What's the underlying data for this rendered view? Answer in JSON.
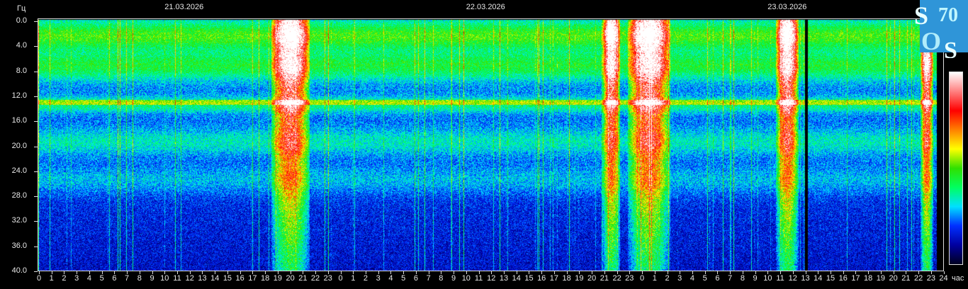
{
  "chart_data": {
    "type": "heatmap",
    "title": "",
    "ylabel": "Гц",
    "xlabel": "час",
    "ylim": [
      0,
      40
    ],
    "xlim_hours": [
      0,
      72
    ],
    "yticks": [
      "0.0",
      "4.0",
      "8.0",
      "12.0",
      "16.0",
      "20.0",
      "24.0",
      "28.0",
      "32.0",
      "36.0",
      "40.0"
    ],
    "xticks": [
      "0",
      "1",
      "2",
      "3",
      "4",
      "5",
      "6",
      "7",
      "8",
      "9",
      "10",
      "11",
      "12",
      "13",
      "14",
      "15",
      "16",
      "17",
      "18",
      "19",
      "20",
      "21",
      "22",
      "23",
      "0",
      "1",
      "2",
      "3",
      "4",
      "5",
      "6",
      "7",
      "8",
      "9",
      "10",
      "11",
      "12",
      "13",
      "14",
      "15",
      "16",
      "17",
      "18",
      "19",
      "20",
      "21",
      "22",
      "23",
      "0",
      "1",
      "2",
      "3",
      "4",
      "5",
      "6",
      "7",
      "8",
      "9",
      "10",
      "11",
      "12",
      "13",
      "14",
      "15",
      "16",
      "17",
      "18",
      "19",
      "20",
      "21",
      "22",
      "23",
      "24"
    ],
    "dates": [
      "21.03.2026",
      "22.03.2026",
      "23.03.2026"
    ],
    "data_end_hour": 71.2,
    "resonance_bands_hz": [
      3.0,
      7.8,
      14.0,
      20.0,
      26.0
    ],
    "high_intensity_periods_hours": [
      [
        18.5,
        21.6
      ],
      [
        44.9,
        46.3
      ],
      [
        46.9,
        50.3
      ],
      [
        58.7,
        60.5
      ],
      [
        70.2,
        71.2
      ]
    ],
    "data_gap_hour": 61.1,
    "colorscale": [
      "#000020",
      "#0000a0",
      "#0030ff",
      "#00e0ff",
      "#00ff60",
      "#30e000",
      "#ffff00",
      "#ff8000",
      "#ff0000",
      "#ff8080",
      "#ffffff"
    ]
  },
  "logo": {
    "text": "SOS 70",
    "bg": "#2f95d8"
  }
}
